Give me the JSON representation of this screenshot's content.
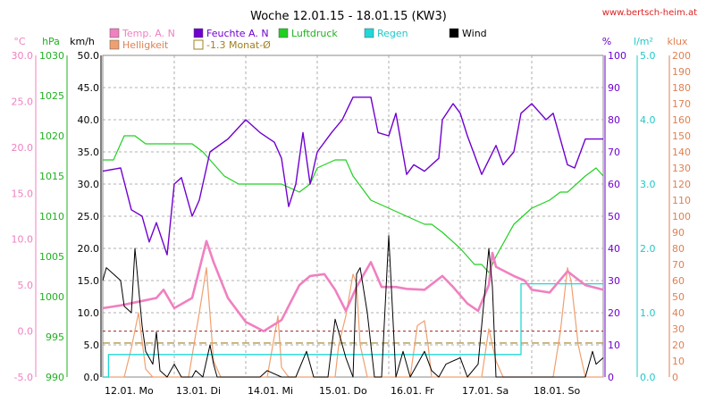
{
  "header": {
    "title": "Woche 12.01.15 - 18.01.15 (KW3)",
    "source": "www.bertsch-heim.at"
  },
  "legend": [
    {
      "label": "Temp. A. N",
      "color": "#f080c0",
      "style": "fill"
    },
    {
      "label": "Helligkeit",
      "color": "#f0a070",
      "style": "fill"
    },
    {
      "label": "Feuchte A. N",
      "color": "#7000d0",
      "style": "fill"
    },
    {
      "label": "-1.3 Monat-Ø",
      "color": "#a08020",
      "style": "outline"
    },
    {
      "label": "Luftdruck",
      "color": "#20d020",
      "style": "fill"
    },
    {
      "label": "Regen",
      "color": "#20d8d8",
      "style": "fill"
    },
    {
      "label": "Wind",
      "color": "#000000",
      "style": "fill"
    }
  ],
  "axes": {
    "temp": {
      "unit": "°C",
      "color": "#f080c0",
      "ticks": [
        "30.0",
        "25.0",
        "20.0",
        "15.0",
        "10.0",
        "5.0",
        "0.0",
        "-5.0"
      ]
    },
    "pressure": {
      "unit": "hPa",
      "color": "#20b020",
      "ticks": [
        "1030",
        "1025",
        "1020",
        "1015",
        "1010",
        "1005",
        "1000",
        "995",
        "990"
      ]
    },
    "wind": {
      "unit": "km/h",
      "color": "#000000",
      "ticks": [
        "50.0",
        "45.0",
        "40.0",
        "35.0",
        "30.0",
        "25.0",
        "20.0",
        "15.0",
        "10.0",
        "5.0",
        "0.0"
      ]
    },
    "humidity": {
      "unit": "%",
      "color": "#7000d0",
      "ticks": [
        "100",
        "90",
        "80",
        "70",
        "60",
        "50",
        "40",
        "30",
        "20",
        "10",
        "0"
      ]
    },
    "rain": {
      "unit": "l/m²",
      "color": "#20c8c8",
      "ticks": [
        "5.0",
        "4.0",
        "3.0",
        "2.0",
        "1.0",
        "0.0"
      ]
    },
    "light": {
      "unit": "klux",
      "color": "#e08050",
      "ticks": [
        "200",
        "190",
        "180",
        "170",
        "160",
        "150",
        "140",
        "130",
        "120",
        "110",
        "100",
        "90",
        "80",
        "70",
        "60",
        "50",
        "40",
        "30",
        "20",
        "10",
        "0"
      ]
    },
    "x_ticks": [
      "12.01. Mo",
      "13.01. Di",
      "14.01. Mi",
      "15.01. Do",
      "16.01. Fr",
      "17.01. Sa",
      "18.01. So"
    ]
  },
  "chart_data": {
    "type": "line",
    "title": "Woche 12.01.15 - 18.01.15 (KW3)",
    "x_unit": "days from 12.01.",
    "xlim": [
      0,
      7
    ],
    "series": [
      {
        "name": "Temp. A. N",
        "axis": "temp",
        "unit": "°C",
        "ylim": [
          -5,
          30
        ],
        "points": [
          [
            0,
            2.5
          ],
          [
            0.25,
            2.8
          ],
          [
            0.5,
            3.2
          ],
          [
            0.75,
            3.6
          ],
          [
            0.85,
            4.5
          ],
          [
            1.0,
            2.5
          ],
          [
            1.25,
            3.6
          ],
          [
            1.45,
            9.8
          ],
          [
            1.55,
            7.5
          ],
          [
            1.75,
            3.6
          ],
          [
            2.0,
            1.0
          ],
          [
            2.25,
            0.0
          ],
          [
            2.5,
            1.2
          ],
          [
            2.75,
            5.0
          ],
          [
            2.9,
            6.0
          ],
          [
            3.1,
            6.2
          ],
          [
            3.25,
            4.5
          ],
          [
            3.4,
            2.2
          ],
          [
            3.55,
            4.8
          ],
          [
            3.75,
            7.5
          ],
          [
            3.9,
            4.8
          ],
          [
            4.1,
            4.8
          ],
          [
            4.25,
            4.6
          ],
          [
            4.5,
            4.5
          ],
          [
            4.75,
            6.0
          ],
          [
            4.9,
            4.8
          ],
          [
            5.1,
            3.0
          ],
          [
            5.25,
            2.2
          ],
          [
            5.4,
            5.0
          ],
          [
            5.45,
            8.5
          ],
          [
            5.5,
            7.0
          ],
          [
            5.75,
            6.0
          ],
          [
            5.9,
            5.5
          ],
          [
            6.0,
            4.5
          ],
          [
            6.25,
            4.2
          ],
          [
            6.5,
            6.5
          ],
          [
            6.75,
            5.0
          ],
          [
            7.0,
            4.5
          ]
        ]
      },
      {
        "name": "Feuchte A. N",
        "axis": "humidity",
        "unit": "%",
        "ylim": [
          0,
          100
        ],
        "points": [
          [
            0,
            64
          ],
          [
            0.25,
            65
          ],
          [
            0.4,
            52
          ],
          [
            0.55,
            50
          ],
          [
            0.65,
            42
          ],
          [
            0.75,
            48
          ],
          [
            0.9,
            38
          ],
          [
            1.0,
            60
          ],
          [
            1.1,
            62
          ],
          [
            1.25,
            50
          ],
          [
            1.35,
            55
          ],
          [
            1.5,
            70
          ],
          [
            1.75,
            74
          ],
          [
            2.0,
            80
          ],
          [
            2.2,
            76
          ],
          [
            2.4,
            73
          ],
          [
            2.5,
            68
          ],
          [
            2.6,
            53
          ],
          [
            2.7,
            60
          ],
          [
            2.8,
            76
          ],
          [
            2.9,
            60
          ],
          [
            3.0,
            70
          ],
          [
            3.2,
            76
          ],
          [
            3.35,
            80
          ],
          [
            3.5,
            87
          ],
          [
            3.75,
            87
          ],
          [
            3.85,
            76
          ],
          [
            4.0,
            75
          ],
          [
            4.1,
            82
          ],
          [
            4.25,
            63
          ],
          [
            4.35,
            66
          ],
          [
            4.5,
            64
          ],
          [
            4.7,
            68
          ],
          [
            4.75,
            80
          ],
          [
            4.9,
            85
          ],
          [
            5.0,
            82
          ],
          [
            5.1,
            75
          ],
          [
            5.3,
            63
          ],
          [
            5.5,
            72
          ],
          [
            5.6,
            66
          ],
          [
            5.75,
            70
          ],
          [
            5.85,
            82
          ],
          [
            6.0,
            85
          ],
          [
            6.2,
            80
          ],
          [
            6.3,
            82
          ],
          [
            6.4,
            74
          ],
          [
            6.5,
            66
          ],
          [
            6.6,
            65
          ],
          [
            6.75,
            74
          ],
          [
            7.0,
            74
          ]
        ]
      },
      {
        "name": "Luftdruck",
        "axis": "pressure",
        "unit": "hPa",
        "ylim": [
          990,
          1030
        ],
        "points": [
          [
            0,
            1017
          ],
          [
            0.15,
            1017
          ],
          [
            0.3,
            1020
          ],
          [
            0.45,
            1020
          ],
          [
            0.6,
            1019
          ],
          [
            0.75,
            1019
          ],
          [
            1.0,
            1019
          ],
          [
            1.25,
            1019
          ],
          [
            1.4,
            1018
          ],
          [
            1.5,
            1017
          ],
          [
            1.7,
            1015
          ],
          [
            1.9,
            1014
          ],
          [
            2.0,
            1014
          ],
          [
            2.25,
            1014
          ],
          [
            2.5,
            1014
          ],
          [
            2.75,
            1013
          ],
          [
            2.9,
            1014
          ],
          [
            3.0,
            1016
          ],
          [
            3.25,
            1017
          ],
          [
            3.4,
            1017
          ],
          [
            3.5,
            1015
          ],
          [
            3.75,
            1012
          ],
          [
            4.0,
            1011
          ],
          [
            4.25,
            1010
          ],
          [
            4.5,
            1009
          ],
          [
            4.6,
            1009
          ],
          [
            4.75,
            1008
          ],
          [
            5.0,
            1006
          ],
          [
            5.2,
            1004
          ],
          [
            5.3,
            1004
          ],
          [
            5.4,
            1003
          ],
          [
            5.5,
            1005
          ],
          [
            5.75,
            1009
          ],
          [
            6.0,
            1011
          ],
          [
            6.25,
            1012
          ],
          [
            6.4,
            1013
          ],
          [
            6.5,
            1013
          ],
          [
            6.75,
            1015
          ],
          [
            6.9,
            1016
          ],
          [
            7.0,
            1015
          ]
        ]
      },
      {
        "name": "Wind",
        "axis": "wind",
        "unit": "km/h",
        "ylim": [
          0,
          50
        ],
        "points": [
          [
            0,
            15
          ],
          [
            0.05,
            17
          ],
          [
            0.15,
            16
          ],
          [
            0.25,
            15
          ],
          [
            0.3,
            11
          ],
          [
            0.4,
            10
          ],
          [
            0.45,
            20
          ],
          [
            0.55,
            8
          ],
          [
            0.6,
            4
          ],
          [
            0.7,
            2
          ],
          [
            0.75,
            7
          ],
          [
            0.8,
            1
          ],
          [
            0.9,
            0
          ],
          [
            1.0,
            2
          ],
          [
            1.1,
            0
          ],
          [
            1.25,
            0
          ],
          [
            1.3,
            1
          ],
          [
            1.4,
            0
          ],
          [
            1.5,
            5
          ],
          [
            1.55,
            2
          ],
          [
            1.6,
            0
          ],
          [
            2.0,
            0
          ],
          [
            2.2,
            0
          ],
          [
            2.3,
            1
          ],
          [
            2.5,
            0
          ],
          [
            2.6,
            0
          ],
          [
            2.7,
            0
          ],
          [
            2.85,
            4
          ],
          [
            2.95,
            0
          ],
          [
            3.0,
            0
          ],
          [
            3.15,
            0
          ],
          [
            3.25,
            9
          ],
          [
            3.3,
            7
          ],
          [
            3.4,
            3
          ],
          [
            3.5,
            0
          ],
          [
            3.55,
            16
          ],
          [
            3.6,
            17
          ],
          [
            3.7,
            10
          ],
          [
            3.8,
            0
          ],
          [
            3.9,
            0
          ],
          [
            4.0,
            22
          ],
          [
            4.1,
            0
          ],
          [
            4.2,
            4
          ],
          [
            4.3,
            0
          ],
          [
            4.5,
            4
          ],
          [
            4.6,
            1
          ],
          [
            4.7,
            0
          ],
          [
            4.8,
            2
          ],
          [
            5.0,
            3
          ],
          [
            5.1,
            0
          ],
          [
            5.25,
            2
          ],
          [
            5.4,
            20
          ],
          [
            5.45,
            14
          ],
          [
            5.5,
            0
          ],
          [
            5.75,
            0
          ],
          [
            5.8,
            0
          ],
          [
            6.0,
            0
          ],
          [
            6.1,
            0
          ],
          [
            6.25,
            0
          ],
          [
            6.5,
            0
          ],
          [
            6.75,
            0
          ],
          [
            6.85,
            4
          ],
          [
            6.9,
            2
          ],
          [
            7.0,
            3
          ]
        ]
      },
      {
        "name": "Helligkeit",
        "axis": "light",
        "unit": "klux",
        "ylim": [
          0,
          200
        ],
        "points": [
          [
            0,
            0
          ],
          [
            0.3,
            0
          ],
          [
            0.4,
            18
          ],
          [
            0.5,
            40
          ],
          [
            0.6,
            5
          ],
          [
            0.7,
            0
          ],
          [
            1.0,
            0
          ],
          [
            1.2,
            0
          ],
          [
            1.35,
            40
          ],
          [
            1.45,
            68
          ],
          [
            1.55,
            10
          ],
          [
            1.65,
            0
          ],
          [
            2.0,
            0
          ],
          [
            2.3,
            0
          ],
          [
            2.45,
            38
          ],
          [
            2.5,
            6
          ],
          [
            2.6,
            0
          ],
          [
            3.0,
            0
          ],
          [
            3.25,
            0
          ],
          [
            3.3,
            20
          ],
          [
            3.4,
            38
          ],
          [
            3.5,
            64
          ],
          [
            3.55,
            58
          ],
          [
            3.6,
            20
          ],
          [
            3.7,
            0
          ],
          [
            4.0,
            0
          ],
          [
            4.3,
            0
          ],
          [
            4.4,
            32
          ],
          [
            4.5,
            35
          ],
          [
            4.55,
            20
          ],
          [
            4.6,
            0
          ],
          [
            5.0,
            0
          ],
          [
            5.3,
            0
          ],
          [
            5.4,
            30
          ],
          [
            5.5,
            10
          ],
          [
            5.6,
            0
          ],
          [
            6.0,
            0
          ],
          [
            6.3,
            0
          ],
          [
            6.4,
            28
          ],
          [
            6.5,
            68
          ],
          [
            6.55,
            60
          ],
          [
            6.65,
            20
          ],
          [
            6.75,
            0
          ],
          [
            7.0,
            0
          ]
        ]
      },
      {
        "name": "Regen",
        "axis": "rain",
        "unit": "l/m²",
        "ylim": [
          0,
          5
        ],
        "points": [
          [
            0,
            0
          ],
          [
            0.05,
            0
          ],
          [
            0.08,
            0.35
          ],
          [
            2.0,
            0.35
          ],
          [
            5.0,
            0.35
          ],
          [
            5.8,
            0.35
          ],
          [
            5.85,
            1.45
          ],
          [
            7.0,
            1.45
          ]
        ]
      }
    ],
    "reference_lines": [
      {
        "label": "-1.3 Monat-Ø",
        "axis": "temp",
        "value": -1.3,
        "style": "dashed",
        "color": "#a08020"
      }
    ],
    "grid": true
  }
}
